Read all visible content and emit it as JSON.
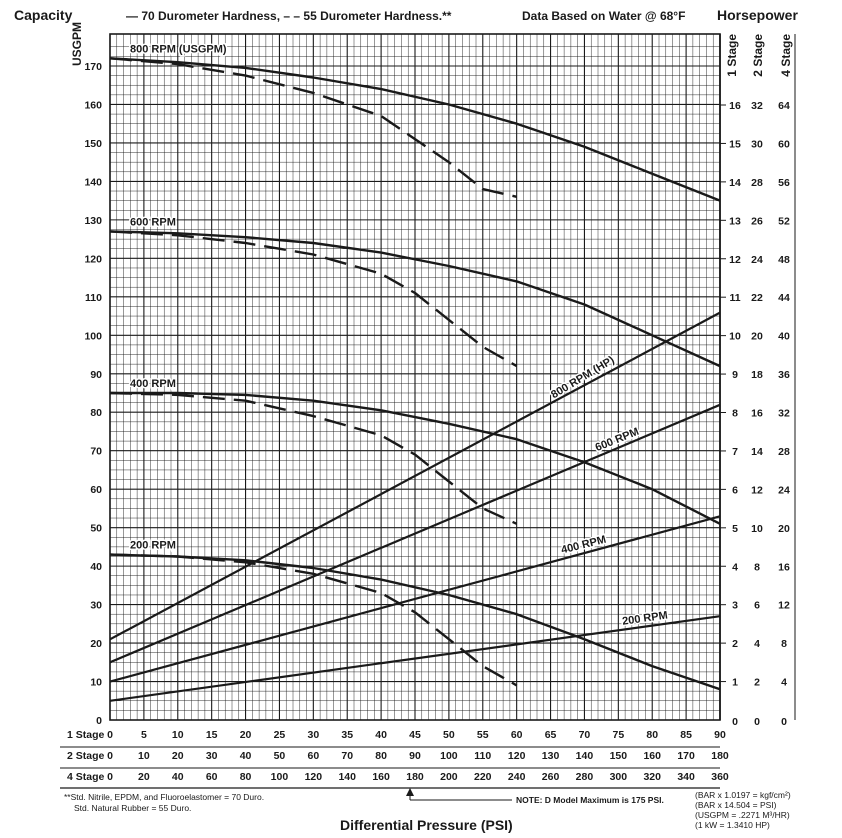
{
  "chart_data": {
    "type": "line",
    "title_left": "Capacity",
    "legend_text": "— 70 Durometer Hardness, – – 55 Durometer Hardness.**",
    "title_center": "Data Based on Water @ 68°F",
    "title_right": "Horsepower",
    "ylabel": "USGPM",
    "xlabel": "Differential Pressure (PSI)",
    "ylim": [
      0,
      175
    ],
    "xlim": [
      0,
      90
    ],
    "y_ticks": [
      0,
      10,
      20,
      30,
      40,
      50,
      60,
      70,
      80,
      90,
      100,
      110,
      120,
      130,
      140,
      150,
      160,
      170
    ],
    "hp_axes": [
      {
        "label": "1 Stage",
        "ticks": [
          "1",
          "2",
          "3",
          "4",
          "5",
          "6",
          "7",
          "8",
          "9",
          "10",
          "11",
          "12",
          "13",
          "14",
          "15",
          "16"
        ],
        "zero": "0"
      },
      {
        "label": "2 Stage",
        "ticks": [
          "2",
          "4",
          "6",
          "8",
          "10",
          "12",
          "14",
          "16",
          "18",
          "20",
          "22",
          "24",
          "26",
          "28",
          "30",
          "32"
        ],
        "zero": "0"
      },
      {
        "label": "4 Stage",
        "ticks": [
          "4",
          "8",
          "12",
          "16",
          "20",
          "24",
          "28",
          "32",
          "36",
          "40",
          "44",
          "48",
          "52",
          "56",
          "60",
          "64"
        ],
        "zero": "0"
      }
    ],
    "x_axis_rows": [
      {
        "label": "1 Stage",
        "ticks": [
          "0",
          "5",
          "10",
          "15",
          "20",
          "25",
          "30",
          "35",
          "40",
          "45",
          "50",
          "55",
          "60",
          "65",
          "70",
          "75",
          "80",
          "85",
          "90"
        ]
      },
      {
        "label": "2 Stage",
        "ticks": [
          "0",
          "10",
          "20",
          "30",
          "40",
          "50",
          "60",
          "70",
          "80",
          "90",
          "100",
          "110",
          "120",
          "130",
          "140",
          "150",
          "160",
          "170",
          "180"
        ]
      },
      {
        "label": "4 Stage",
        "ticks": [
          "0",
          "20",
          "40",
          "60",
          "80",
          "100",
          "120",
          "140",
          "160",
          "180",
          "200",
          "220",
          "240",
          "260",
          "280",
          "300",
          "320",
          "340",
          "360"
        ]
      }
    ],
    "capacity_series": [
      {
        "name": "800 RPM (USGPM)",
        "style": "solid",
        "x": [
          0,
          10,
          20,
          30,
          40,
          50,
          60,
          70,
          80,
          90
        ],
        "y": [
          172,
          171,
          169.5,
          167,
          164,
          160,
          155,
          149,
          142,
          135
        ]
      },
      {
        "name": "800 RPM (USGPM)",
        "style": "dashed",
        "x": [
          0,
          10,
          20,
          30,
          40,
          45,
          50,
          55,
          60
        ],
        "y": [
          172,
          170.5,
          167.5,
          163,
          157,
          151,
          145,
          138,
          136
        ]
      },
      {
        "name": "600 RPM",
        "style": "solid",
        "x": [
          0,
          10,
          20,
          30,
          40,
          50,
          60,
          70,
          80,
          90
        ],
        "y": [
          127,
          126.5,
          125.5,
          124,
          121.5,
          118,
          114,
          108,
          100,
          92
        ]
      },
      {
        "name": "600 RPM",
        "style": "dashed",
        "x": [
          0,
          10,
          20,
          30,
          40,
          45,
          50,
          55,
          60
        ],
        "y": [
          127,
          126,
          124,
          121,
          116,
          111,
          104,
          97,
          92
        ]
      },
      {
        "name": "400 RPM",
        "style": "solid",
        "x": [
          0,
          10,
          20,
          30,
          40,
          50,
          60,
          70,
          80,
          90
        ],
        "y": [
          85,
          85,
          84.5,
          83,
          80.5,
          77,
          73,
          67,
          60,
          51
        ]
      },
      {
        "name": "400 RPM",
        "style": "dashed",
        "x": [
          0,
          10,
          20,
          30,
          40,
          45,
          50,
          55,
          60
        ],
        "y": [
          85,
          84.5,
          83,
          79,
          74,
          69,
          62,
          55,
          51
        ]
      },
      {
        "name": "200 RPM",
        "style": "solid",
        "x": [
          0,
          10,
          20,
          30,
          40,
          50,
          60,
          70,
          80,
          90
        ],
        "y": [
          43,
          42.5,
          41.5,
          39.5,
          36.5,
          32.5,
          27.5,
          21,
          14,
          8
        ]
      },
      {
        "name": "200 RPM",
        "style": "dashed",
        "x": [
          0,
          10,
          20,
          30,
          40,
          45,
          50,
          55,
          60
        ],
        "y": [
          43,
          42.5,
          41,
          38,
          33,
          28,
          21,
          14,
          9
        ]
      }
    ],
    "hp_series": [
      {
        "name": "800 RPM (HP)",
        "x": [
          0,
          90
        ],
        "hp_1stage": [
          2.1,
          10.6
        ]
      },
      {
        "name": "600 RPM",
        "x": [
          0,
          90
        ],
        "hp_1stage": [
          1.5,
          8.2
        ]
      },
      {
        "name": "400 RPM",
        "x": [
          0,
          90
        ],
        "hp_1stage": [
          1.0,
          5.3
        ]
      },
      {
        "name": "200 RPM",
        "x": [
          0,
          90
        ],
        "hp_1stage": [
          0.5,
          2.7
        ]
      }
    ],
    "footnote_1": "**Std. Nitrile, EPDM, and Fluoroelastomer = 70 Duro.",
    "footnote_2": "Std. Natural Rubber = 55 Duro.",
    "note": "NOTE: D Model Maximum is 175 PSI.",
    "conversions": [
      "(BAR x 1.0197 = kgf/cm²)",
      "(BAR x 14.504 = PSI)",
      "(USGPM = .2271 M³/HR)",
      "(1 kW = 1.3410 HP)"
    ]
  }
}
